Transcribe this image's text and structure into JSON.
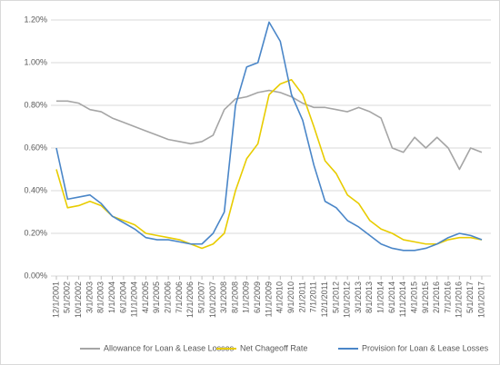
{
  "chart_data": {
    "type": "line",
    "categories": [
      "12/1/2001",
      "5/1/2002",
      "10/1/2002",
      "3/1/2003",
      "8/1/2003",
      "1/1/2004",
      "6/1/2004",
      "11/1/2004",
      "4/1/2005",
      "9/1/2005",
      "2/1/2006",
      "7/1/2006",
      "12/1/2006",
      "5/1/2007",
      "10/1/2007",
      "3/1/2008",
      "8/1/2008",
      "1/1/2009",
      "6/1/2009",
      "11/1/2009",
      "4/1/2010",
      "9/1/2010",
      "2/1/2011",
      "7/1/2011",
      "12/1/2011",
      "5/1/2012",
      "10/1/2012",
      "3/1/2013",
      "8/1/2013",
      "1/1/2014",
      "6/1/2014",
      "11/1/2014",
      "4/1/2015",
      "9/1/2015",
      "2/1/2016",
      "7/1/2016",
      "12/1/2016",
      "5/1/2017",
      "10/1/2017"
    ],
    "series": [
      {
        "name": "Allowance for Loan & Lease Losses",
        "color": "#a5a5a5",
        "values": [
          0.82,
          0.82,
          0.81,
          0.78,
          0.77,
          0.74,
          0.72,
          0.7,
          0.68,
          0.66,
          0.64,
          0.63,
          0.62,
          0.63,
          0.66,
          0.78,
          0.83,
          0.84,
          0.86,
          0.87,
          0.86,
          0.84,
          0.81,
          0.79,
          0.79,
          0.78,
          0.77,
          0.79,
          0.77,
          0.74,
          0.6,
          0.58,
          0.65,
          0.6,
          0.65,
          0.6,
          0.5,
          0.6,
          0.58
        ]
      },
      {
        "name": "Net Chageoff Rate",
        "color": "#e8cc00",
        "values": [
          0.5,
          0.32,
          0.33,
          0.35,
          0.33,
          0.28,
          0.26,
          0.24,
          0.2,
          0.19,
          0.18,
          0.17,
          0.15,
          0.13,
          0.15,
          0.2,
          0.4,
          0.55,
          0.62,
          0.85,
          0.9,
          0.92,
          0.85,
          0.7,
          0.54,
          0.48,
          0.38,
          0.34,
          0.26,
          0.22,
          0.2,
          0.17,
          0.16,
          0.15,
          0.15,
          0.17,
          0.18,
          0.18,
          0.17
        ]
      },
      {
        "name": "Provision for Loan & Lease Losses",
        "color": "#4a86c8",
        "values": [
          0.6,
          0.36,
          0.37,
          0.38,
          0.34,
          0.28,
          0.25,
          0.22,
          0.18,
          0.17,
          0.17,
          0.16,
          0.15,
          0.15,
          0.2,
          0.3,
          0.8,
          0.98,
          1.0,
          1.19,
          1.1,
          0.85,
          0.73,
          0.52,
          0.35,
          0.32,
          0.26,
          0.23,
          0.19,
          0.15,
          0.13,
          0.12,
          0.12,
          0.13,
          0.15,
          0.18,
          0.2,
          0.19,
          0.17
        ]
      }
    ],
    "ylim": [
      0,
      1.2
    ],
    "yticks": [
      {
        "value": 0,
        "label": "0.00%"
      },
      {
        "value": 0.2,
        "label": "0.20%"
      },
      {
        "value": 0.4,
        "label": "0.40%"
      },
      {
        "value": 0.6,
        "label": "0.60%"
      },
      {
        "value": 0.8,
        "label": "0.80%"
      },
      {
        "value": 1.0,
        "label": "1.00%"
      },
      {
        "value": 1.2,
        "label": "1.20%"
      }
    ],
    "grid": true,
    "legend": "bottom"
  }
}
